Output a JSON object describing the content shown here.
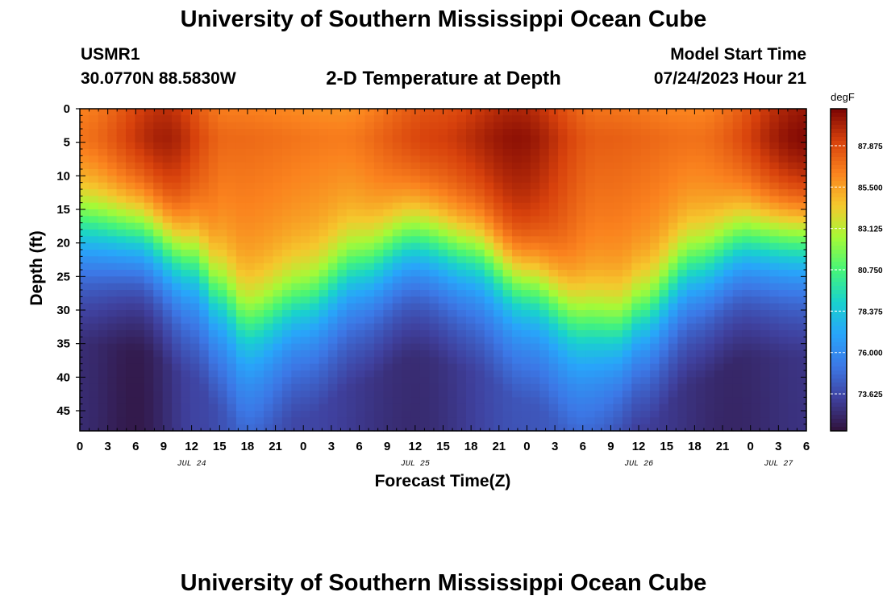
{
  "header": {
    "title": "University of Southern Mississippi Ocean Cube",
    "station": "USMR1",
    "coords": "30.0770N  88.5830W",
    "plot_title": "2-D Temperature at Depth",
    "model_start_label": "Model Start Time",
    "model_start_value": "07/24/2023 Hour 21"
  },
  "footer": {
    "title": "University of Southern Mississippi Ocean Cube"
  },
  "chart_data": {
    "type": "heatmap",
    "title": "2-D Temperature at Depth",
    "xlabel": "Forecast Time(Z)",
    "ylabel": "Depth (ft)",
    "x_range_hours": [
      0,
      78
    ],
    "x_tick_labels": [
      "0",
      "3",
      "6",
      "9",
      "12",
      "15",
      "18",
      "21",
      "0",
      "3",
      "6",
      "9",
      "12",
      "15",
      "18",
      "21",
      "0",
      "3",
      "6",
      "9",
      "12",
      "15",
      "18",
      "21",
      "0",
      "3",
      "6"
    ],
    "date_labels": [
      {
        "label": "JUL 24",
        "hour": 12
      },
      {
        "label": "JUL 25",
        "hour": 36
      },
      {
        "label": "JUL 26",
        "hour": 60
      },
      {
        "label": "JUL 27",
        "hour": 75
      }
    ],
    "y_range_ft": [
      0,
      48
    ],
    "y_ticks": [
      0,
      5,
      10,
      15,
      20,
      25,
      30,
      35,
      40,
      45
    ],
    "colorbar": {
      "unit": "degF",
      "min": 71.5,
      "max": 90.0,
      "tick_values": [
        87.875,
        85.5,
        83.125,
        80.75,
        78.375,
        76.0,
        73.625
      ],
      "tick_labels": [
        "87.875",
        "85.500",
        "83.125",
        "80.750",
        "78.375",
        "76.000",
        "73.625"
      ]
    },
    "thermocline_depth_ft": [
      {
        "hour": 0,
        "depth": 17
      },
      {
        "hour": 6,
        "depth": 18
      },
      {
        "hour": 12,
        "depth": 22
      },
      {
        "hour": 15,
        "depth": 27
      },
      {
        "hour": 18,
        "depth": 31
      },
      {
        "hour": 24,
        "depth": 28
      },
      {
        "hour": 30,
        "depth": 23
      },
      {
        "hour": 36,
        "depth": 19
      },
      {
        "hour": 42,
        "depth": 21
      },
      {
        "hour": 48,
        "depth": 26
      },
      {
        "hour": 54,
        "depth": 31
      },
      {
        "hour": 58,
        "depth": 32
      },
      {
        "hour": 60,
        "depth": 30
      },
      {
        "hour": 66,
        "depth": 23
      },
      {
        "hour": 72,
        "depth": 19
      },
      {
        "hour": 78,
        "depth": 19
      }
    ],
    "surface_temp_degF": [
      {
        "hour": 0,
        "temp": 87.0
      },
      {
        "hour": 9,
        "temp": 89.3
      },
      {
        "hour": 16,
        "temp": 87.0
      },
      {
        "hour": 28,
        "temp": 86.5
      },
      {
        "hour": 38,
        "temp": 88.3
      },
      {
        "hour": 47,
        "temp": 89.6
      },
      {
        "hour": 56,
        "temp": 87.3
      },
      {
        "hour": 66,
        "temp": 86.8
      },
      {
        "hour": 78,
        "temp": 90.0
      }
    ],
    "bottom_temp_degF": [
      {
        "hour": 0,
        "temp": 72.5
      },
      {
        "hour": 6,
        "temp": 71.8
      },
      {
        "hour": 13,
        "temp": 73.5
      },
      {
        "hour": 18,
        "temp": 74.5
      },
      {
        "hour": 24,
        "temp": 73.5
      },
      {
        "hour": 36,
        "temp": 72.5
      },
      {
        "hour": 48,
        "temp": 74.0
      },
      {
        "hour": 54,
        "temp": 74.5
      },
      {
        "hour": 60,
        "temp": 73.2
      },
      {
        "hour": 70,
        "temp": 72.3
      },
      {
        "hour": 78,
        "temp": 72.8
      }
    ]
  }
}
